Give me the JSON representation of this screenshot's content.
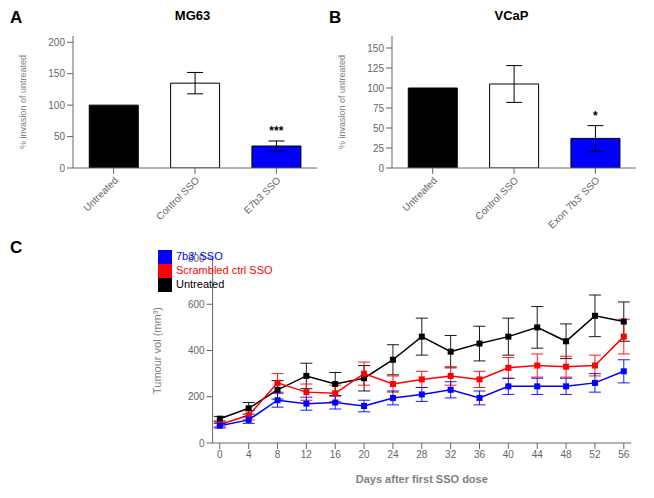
{
  "chart_data": [
    {
      "type": "bar",
      "title": "MG63",
      "categories": [
        "Untreated",
        "Control SSO",
        "E7b3 SSO"
      ],
      "values": [
        100,
        135,
        35
      ],
      "errors": [
        0,
        17,
        8
      ],
      "colors": [
        "black",
        "white",
        "blue"
      ],
      "ylabel": "% invasion of untreated",
      "ylim": [
        0,
        210
      ],
      "yticks": [
        0,
        50,
        100,
        150,
        200
      ],
      "annotations": [
        {
          "text": "A"
        },
        {
          "text": "***",
          "category": "E7b3 SSO"
        }
      ]
    },
    {
      "type": "bar",
      "title": "VCaP",
      "categories": [
        "Untreated",
        "Control SSO",
        "Exon 7b3' SSO"
      ],
      "values": [
        100,
        105,
        37
      ],
      "errors": [
        0,
        23,
        16
      ],
      "colors": [
        "black",
        "white",
        "blue"
      ],
      "ylabel": "% invasion of untreated",
      "ylim": [
        0,
        165
      ],
      "yticks": [
        0,
        25,
        50,
        75,
        100,
        125,
        150
      ],
      "annotations": [
        {
          "text": "B"
        },
        {
          "text": "*",
          "category": "Exon 7b3' SSO"
        }
      ]
    },
    {
      "type": "line",
      "xlabel": "Days after first SSO dose",
      "ylabel": "Tumour vol (mm³)",
      "xlim": [
        -1,
        57
      ],
      "ylim": [
        0,
        800
      ],
      "xticks": [
        0,
        4,
        8,
        12,
        16,
        20,
        24,
        28,
        32,
        36,
        40,
        44,
        48,
        52,
        56
      ],
      "yticks": [
        0,
        200,
        400,
        600,
        800
      ],
      "x": [
        0,
        4,
        8,
        12,
        16,
        20,
        24,
        28,
        32,
        36,
        40,
        44,
        48,
        52,
        56
      ],
      "legend": "upper left",
      "marker": "square",
      "series": [
        {
          "name": "Untreated",
          "color": "black",
          "values": [
            105,
            150,
            230,
            290,
            255,
            280,
            360,
            460,
            395,
            430,
            460,
            500,
            440,
            550,
            525
          ],
          "errors": [
            10,
            25,
            40,
            55,
            50,
            55,
            65,
            80,
            70,
            75,
            80,
            90,
            75,
            90,
            85
          ]
        },
        {
          "name": "Scrambled ctrl SSO",
          "color": "red",
          "values": [
            80,
            120,
            260,
            220,
            215,
            300,
            255,
            275,
            290,
            275,
            325,
            335,
            330,
            335,
            460
          ],
          "errors": [
            10,
            20,
            40,
            35,
            35,
            50,
            35,
            35,
            40,
            35,
            45,
            50,
            45,
            45,
            75
          ]
        },
        {
          "name": "7b3' SSO",
          "color": "blue",
          "values": [
            75,
            100,
            185,
            170,
            175,
            160,
            195,
            210,
            230,
            195,
            245,
            245,
            245,
            260,
            310
          ],
          "errors": [
            10,
            15,
            30,
            28,
            28,
            25,
            30,
            30,
            35,
            30,
            35,
            35,
            35,
            40,
            50
          ]
        }
      ],
      "annotations": [
        {
          "text": "C"
        }
      ]
    }
  ]
}
